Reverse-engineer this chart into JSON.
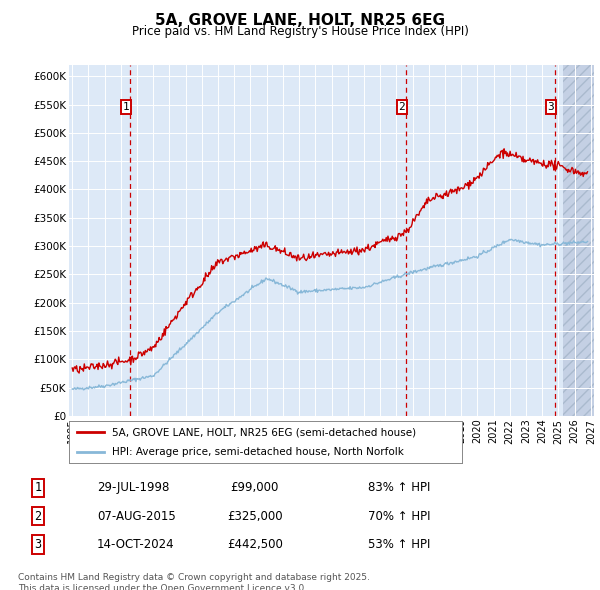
{
  "title": "5A, GROVE LANE, HOLT, NR25 6EG",
  "subtitle": "Price paid vs. HM Land Registry's House Price Index (HPI)",
  "ylim": [
    0,
    620000
  ],
  "xlim_start": 1994.8,
  "xlim_end": 2027.2,
  "bg_color": "#dde9f7",
  "hatch_color": "#c0cce0",
  "red_line_color": "#cc0000",
  "blue_line_color": "#88b8d8",
  "transaction1": {
    "date_label": "29-JUL-1998",
    "year": 1998.57,
    "price": 99000,
    "label": "83% ↑ HPI",
    "num": "1"
  },
  "transaction2": {
    "date_label": "07-AUG-2015",
    "year": 2015.6,
    "price": 325000,
    "label": "70% ↑ HPI",
    "num": "2"
  },
  "transaction3": {
    "date_label": "14-OCT-2024",
    "year": 2024.79,
    "price": 442500,
    "label": "53% ↑ HPI",
    "num": "3"
  },
  "legend_line1": "5A, GROVE LANE, HOLT, NR25 6EG (semi-detached house)",
  "legend_line2": "HPI: Average price, semi-detached house, North Norfolk",
  "footnote": "Contains HM Land Registry data © Crown copyright and database right 2025.\nThis data is licensed under the Open Government Licence v3.0.",
  "yticks": [
    0,
    50000,
    100000,
    150000,
    200000,
    250000,
    300000,
    350000,
    400000,
    450000,
    500000,
    550000,
    600000
  ],
  "ytick_labels": [
    "£0",
    "£50K",
    "£100K",
    "£150K",
    "£200K",
    "£250K",
    "£300K",
    "£350K",
    "£400K",
    "£450K",
    "£500K",
    "£550K",
    "£600K"
  ]
}
